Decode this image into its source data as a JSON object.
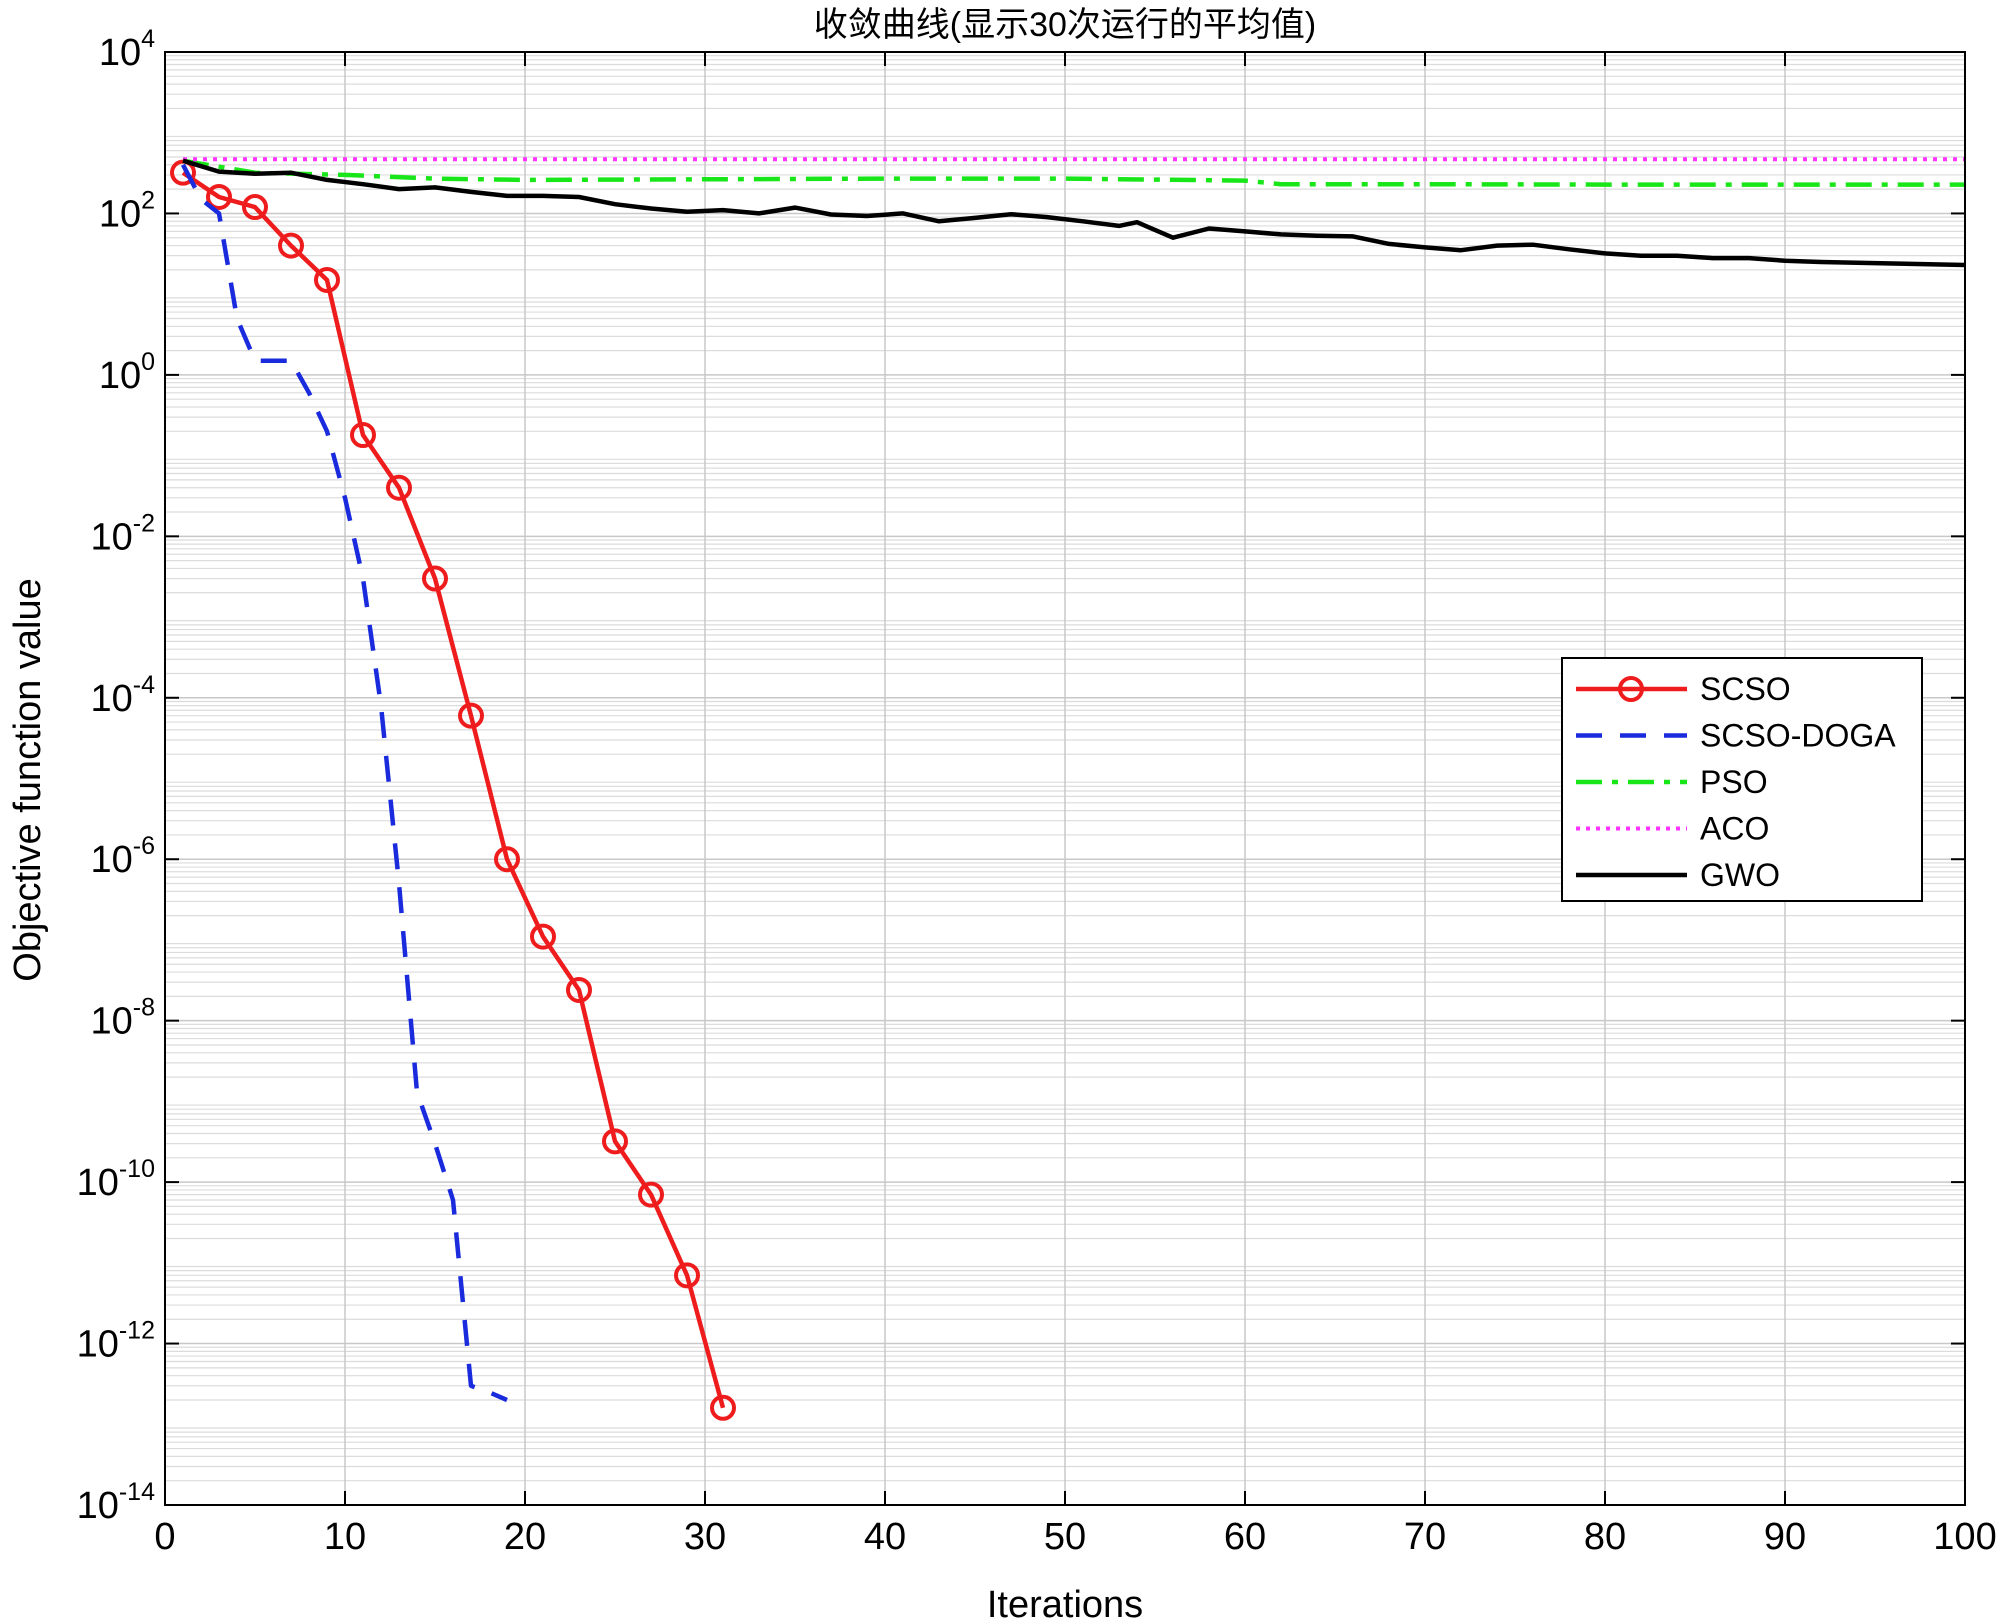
{
  "chart_data": {
    "type": "line",
    "title": "收敛曲线(显示30次运行的平均值)",
    "xlabel": "Iterations",
    "ylabel": "Objective function value",
    "xlim": [
      0,
      100
    ],
    "ylim": [
      1e-14,
      10000
    ],
    "yscale": "log",
    "grid": true,
    "legend_position": "right",
    "x_ticks": [
      0,
      10,
      20,
      30,
      40,
      50,
      60,
      70,
      80,
      90,
      100
    ],
    "y_ticks": [
      {
        "base": "10",
        "exp": "4",
        "value": 10000
      },
      {
        "base": "10",
        "exp": "2",
        "value": 100
      },
      {
        "base": "10",
        "exp": "0",
        "value": 1
      },
      {
        "base": "10",
        "exp": "-2",
        "value": 0.01
      },
      {
        "base": "10",
        "exp": "-4",
        "value": 0.0001
      },
      {
        "base": "10",
        "exp": "-6",
        "value": 1e-06
      },
      {
        "base": "10",
        "exp": "-8",
        "value": 1e-08
      },
      {
        "base": "10",
        "exp": "-10",
        "value": 1e-10
      },
      {
        "base": "10",
        "exp": "-12",
        "value": 1e-12
      },
      {
        "base": "10",
        "exp": "-14",
        "value": 1e-14
      }
    ],
    "series": [
      {
        "name": "SCSO",
        "color": "#ee1c1c",
        "style": "solid-circle-markers",
        "x": [
          1,
          3,
          5,
          7,
          9,
          11,
          13,
          15,
          17,
          19,
          21,
          23,
          25,
          27,
          29,
          31
        ],
        "y": [
          320,
          160,
          120,
          40,
          15,
          0.18,
          0.04,
          0.003,
          6e-05,
          1e-06,
          1.1e-07,
          2.4e-08,
          3.2e-10,
          7e-11,
          7e-12,
          1.6e-13
        ]
      },
      {
        "name": "SCSO-DOGA",
        "color": "#1a2bdd",
        "style": "dashed",
        "x": [
          1,
          2,
          3,
          4,
          5,
          6,
          7,
          8,
          9,
          10,
          11,
          12,
          13,
          14,
          15,
          16,
          17,
          18,
          19
        ],
        "y": [
          400,
          150,
          100,
          5,
          1.5,
          1.5,
          1.5,
          0.6,
          0.2,
          0.03,
          0.003,
          8e-05,
          5e-07,
          1.3e-09,
          3e-10,
          6e-11,
          3e-13,
          2.5e-13,
          2e-13
        ]
      },
      {
        "name": "PSO",
        "color": "#19e619",
        "style": "dash-dot",
        "x": [
          1,
          5,
          10,
          15,
          20,
          30,
          40,
          50,
          60,
          62,
          70,
          80,
          90,
          100
        ],
        "y": [
          450,
          320,
          300,
          270,
          260,
          265,
          270,
          270,
          255,
          230,
          230,
          228,
          228,
          228
        ]
      },
      {
        "name": "ACO",
        "color": "#ff33ff",
        "style": "dotted",
        "x": [
          1,
          100
        ],
        "y": [
          470,
          470
        ]
      },
      {
        "name": "GWO",
        "color": "#000000",
        "style": "solid",
        "x": [
          1,
          3,
          5,
          7,
          9,
          11,
          13,
          15,
          17,
          19,
          21,
          23,
          25,
          27,
          29,
          31,
          33,
          35,
          37,
          39,
          41,
          43,
          45,
          47,
          49,
          51,
          53,
          54,
          56,
          58,
          60,
          62,
          64,
          66,
          68,
          70,
          72,
          74,
          76,
          78,
          80,
          82,
          84,
          86,
          88,
          90,
          92,
          94,
          96,
          98,
          100
        ],
        "y": [
          450,
          330,
          310,
          320,
          260,
          230,
          200,
          210,
          185,
          165,
          165,
          160,
          130,
          115,
          105,
          110,
          100,
          118,
          97,
          93,
          100,
          80,
          88,
          98,
          90,
          80,
          70,
          78,
          50,
          65,
          60,
          55,
          53,
          52,
          42,
          38,
          35,
          40,
          41,
          36,
          32,
          30,
          30,
          28,
          28,
          26,
          25,
          24.5,
          24,
          23.5,
          23
        ]
      }
    ]
  }
}
